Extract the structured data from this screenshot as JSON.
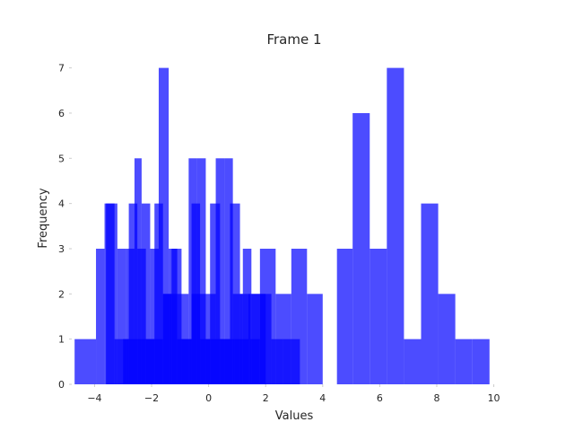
{
  "chart_data": {
    "type": "bar",
    "title": "Frame 1",
    "xlabel": "Values",
    "ylabel": "Frequency",
    "xlim": [
      -4.8,
      10.8
    ],
    "ylim": [
      0,
      7.35
    ],
    "xticks": [
      -4,
      -2,
      0,
      2,
      4,
      6,
      8,
      10
    ],
    "xtick_labels": [
      "−4",
      "−2",
      "0",
      "2",
      "4",
      "6",
      "8",
      "10"
    ],
    "yticks": [
      0,
      1,
      2,
      3,
      4,
      5,
      6,
      7
    ],
    "ytick_labels": [
      "0",
      "1",
      "2",
      "3",
      "4",
      "5",
      "6",
      "7"
    ],
    "grid": false,
    "bar_color": "#0000ff",
    "bar_opacity": 0.7,
    "series": [
      {
        "bins": [
          {
            "x0": -4.7,
            "x1": -3.95,
            "count": 1
          },
          {
            "x0": -3.95,
            "x1": -3.65,
            "count": 3
          },
          {
            "x0": -3.65,
            "x1": -3.2,
            "count": 4
          },
          {
            "x0": -3.2,
            "x1": -2.9,
            "count": 3
          },
          {
            "x0": -2.9,
            "x1": -2.6,
            "count": 3
          },
          {
            "x0": -2.6,
            "x1": -2.35,
            "count": 5
          },
          {
            "x0": -2.35,
            "x1": -2.05,
            "count": 4
          },
          {
            "x0": -2.05,
            "x1": -1.75,
            "count": 3
          },
          {
            "x0": -1.75,
            "x1": -1.4,
            "count": 7
          },
          {
            "x0": -1.4,
            "x1": -1.1,
            "count": 3
          },
          {
            "x0": -1.1,
            "x1": -0.7,
            "count": 2
          },
          {
            "x0": -0.7,
            "x1": -0.4,
            "count": 5
          },
          {
            "x0": -0.4,
            "x1": -0.1,
            "count": 5
          },
          {
            "x0": -0.1,
            "x1": 0.25,
            "count": 2
          },
          {
            "x0": 0.25,
            "x1": 0.55,
            "count": 5
          },
          {
            "x0": 0.55,
            "x1": 0.85,
            "count": 5
          },
          {
            "x0": 0.85,
            "x1": 1.2,
            "count": 2
          },
          {
            "x0": 1.2,
            "x1": 1.5,
            "count": 3
          },
          {
            "x0": 1.5,
            "x1": 1.8,
            "count": 2
          },
          {
            "x0": 1.8,
            "x1": 2.35,
            "count": 3
          },
          {
            "x0": 2.35,
            "x1": 2.9,
            "count": 2
          },
          {
            "x0": 2.9,
            "x1": 3.45,
            "count": 3
          },
          {
            "x0": 3.45,
            "x1": 4.0,
            "count": 2
          }
        ]
      },
      {
        "bins": [
          {
            "x0": -3.6,
            "x1": -3.3,
            "count": 4
          },
          {
            "x0": -3.3,
            "x1": -2.8,
            "count": 1
          },
          {
            "x0": -2.8,
            "x1": -2.5,
            "count": 4
          },
          {
            "x0": -2.5,
            "x1": -2.2,
            "count": 3
          },
          {
            "x0": -2.2,
            "x1": -1.9,
            "count": 1
          },
          {
            "x0": -1.9,
            "x1": -1.6,
            "count": 4
          },
          {
            "x0": -1.6,
            "x1": -1.3,
            "count": 2
          },
          {
            "x0": -1.3,
            "x1": -0.95,
            "count": 3
          },
          {
            "x0": -0.95,
            "x1": -0.6,
            "count": 1
          },
          {
            "x0": -0.6,
            "x1": -0.3,
            "count": 4
          },
          {
            "x0": -0.3,
            "x1": 0.05,
            "count": 1
          },
          {
            "x0": 0.05,
            "x1": 0.4,
            "count": 4
          },
          {
            "x0": 0.4,
            "x1": 0.75,
            "count": 1
          },
          {
            "x0": 0.75,
            "x1": 1.1,
            "count": 4
          },
          {
            "x0": 1.1,
            "x1": 1.45,
            "count": 2
          },
          {
            "x0": 1.45,
            "x1": 1.8,
            "count": 1
          },
          {
            "x0": 1.8,
            "x1": 2.2,
            "count": 2
          },
          {
            "x0": 2.2,
            "x1": 2.6,
            "count": 1
          },
          {
            "x0": 2.6,
            "x1": 3.2,
            "count": 1
          }
        ]
      },
      {
        "bins": [
          {
            "x0": -3.0,
            "x1": -2.5,
            "count": 1
          },
          {
            "x0": -2.5,
            "x1": -2.0,
            "count": 1
          },
          {
            "x0": -2.0,
            "x1": -1.6,
            "count": 1
          },
          {
            "x0": -1.6,
            "x1": -1.1,
            "count": 2
          },
          {
            "x0": -1.1,
            "x1": -0.6,
            "count": 1
          },
          {
            "x0": -0.6,
            "x1": -0.1,
            "count": 2
          },
          {
            "x0": -0.1,
            "x1": 0.4,
            "count": 1
          },
          {
            "x0": 0.4,
            "x1": 0.9,
            "count": 1
          },
          {
            "x0": 0.9,
            "x1": 1.4,
            "count": 1
          },
          {
            "x0": 1.4,
            "x1": 2.0,
            "count": 2
          }
        ]
      },
      {
        "bins": [
          {
            "x0": 4.5,
            "x1": 5.05,
            "count": 3
          },
          {
            "x0": 5.05,
            "x1": 5.65,
            "count": 6
          },
          {
            "x0": 5.65,
            "x1": 6.25,
            "count": 3
          },
          {
            "x0": 6.25,
            "x1": 6.85,
            "count": 7
          },
          {
            "x0": 6.85,
            "x1": 7.45,
            "count": 1
          },
          {
            "x0": 7.45,
            "x1": 8.05,
            "count": 4
          },
          {
            "x0": 8.05,
            "x1": 8.65,
            "count": 2
          },
          {
            "x0": 8.65,
            "x1": 9.25,
            "count": 1
          },
          {
            "x0": 9.25,
            "x1": 9.85,
            "count": 1
          }
        ]
      }
    ]
  }
}
